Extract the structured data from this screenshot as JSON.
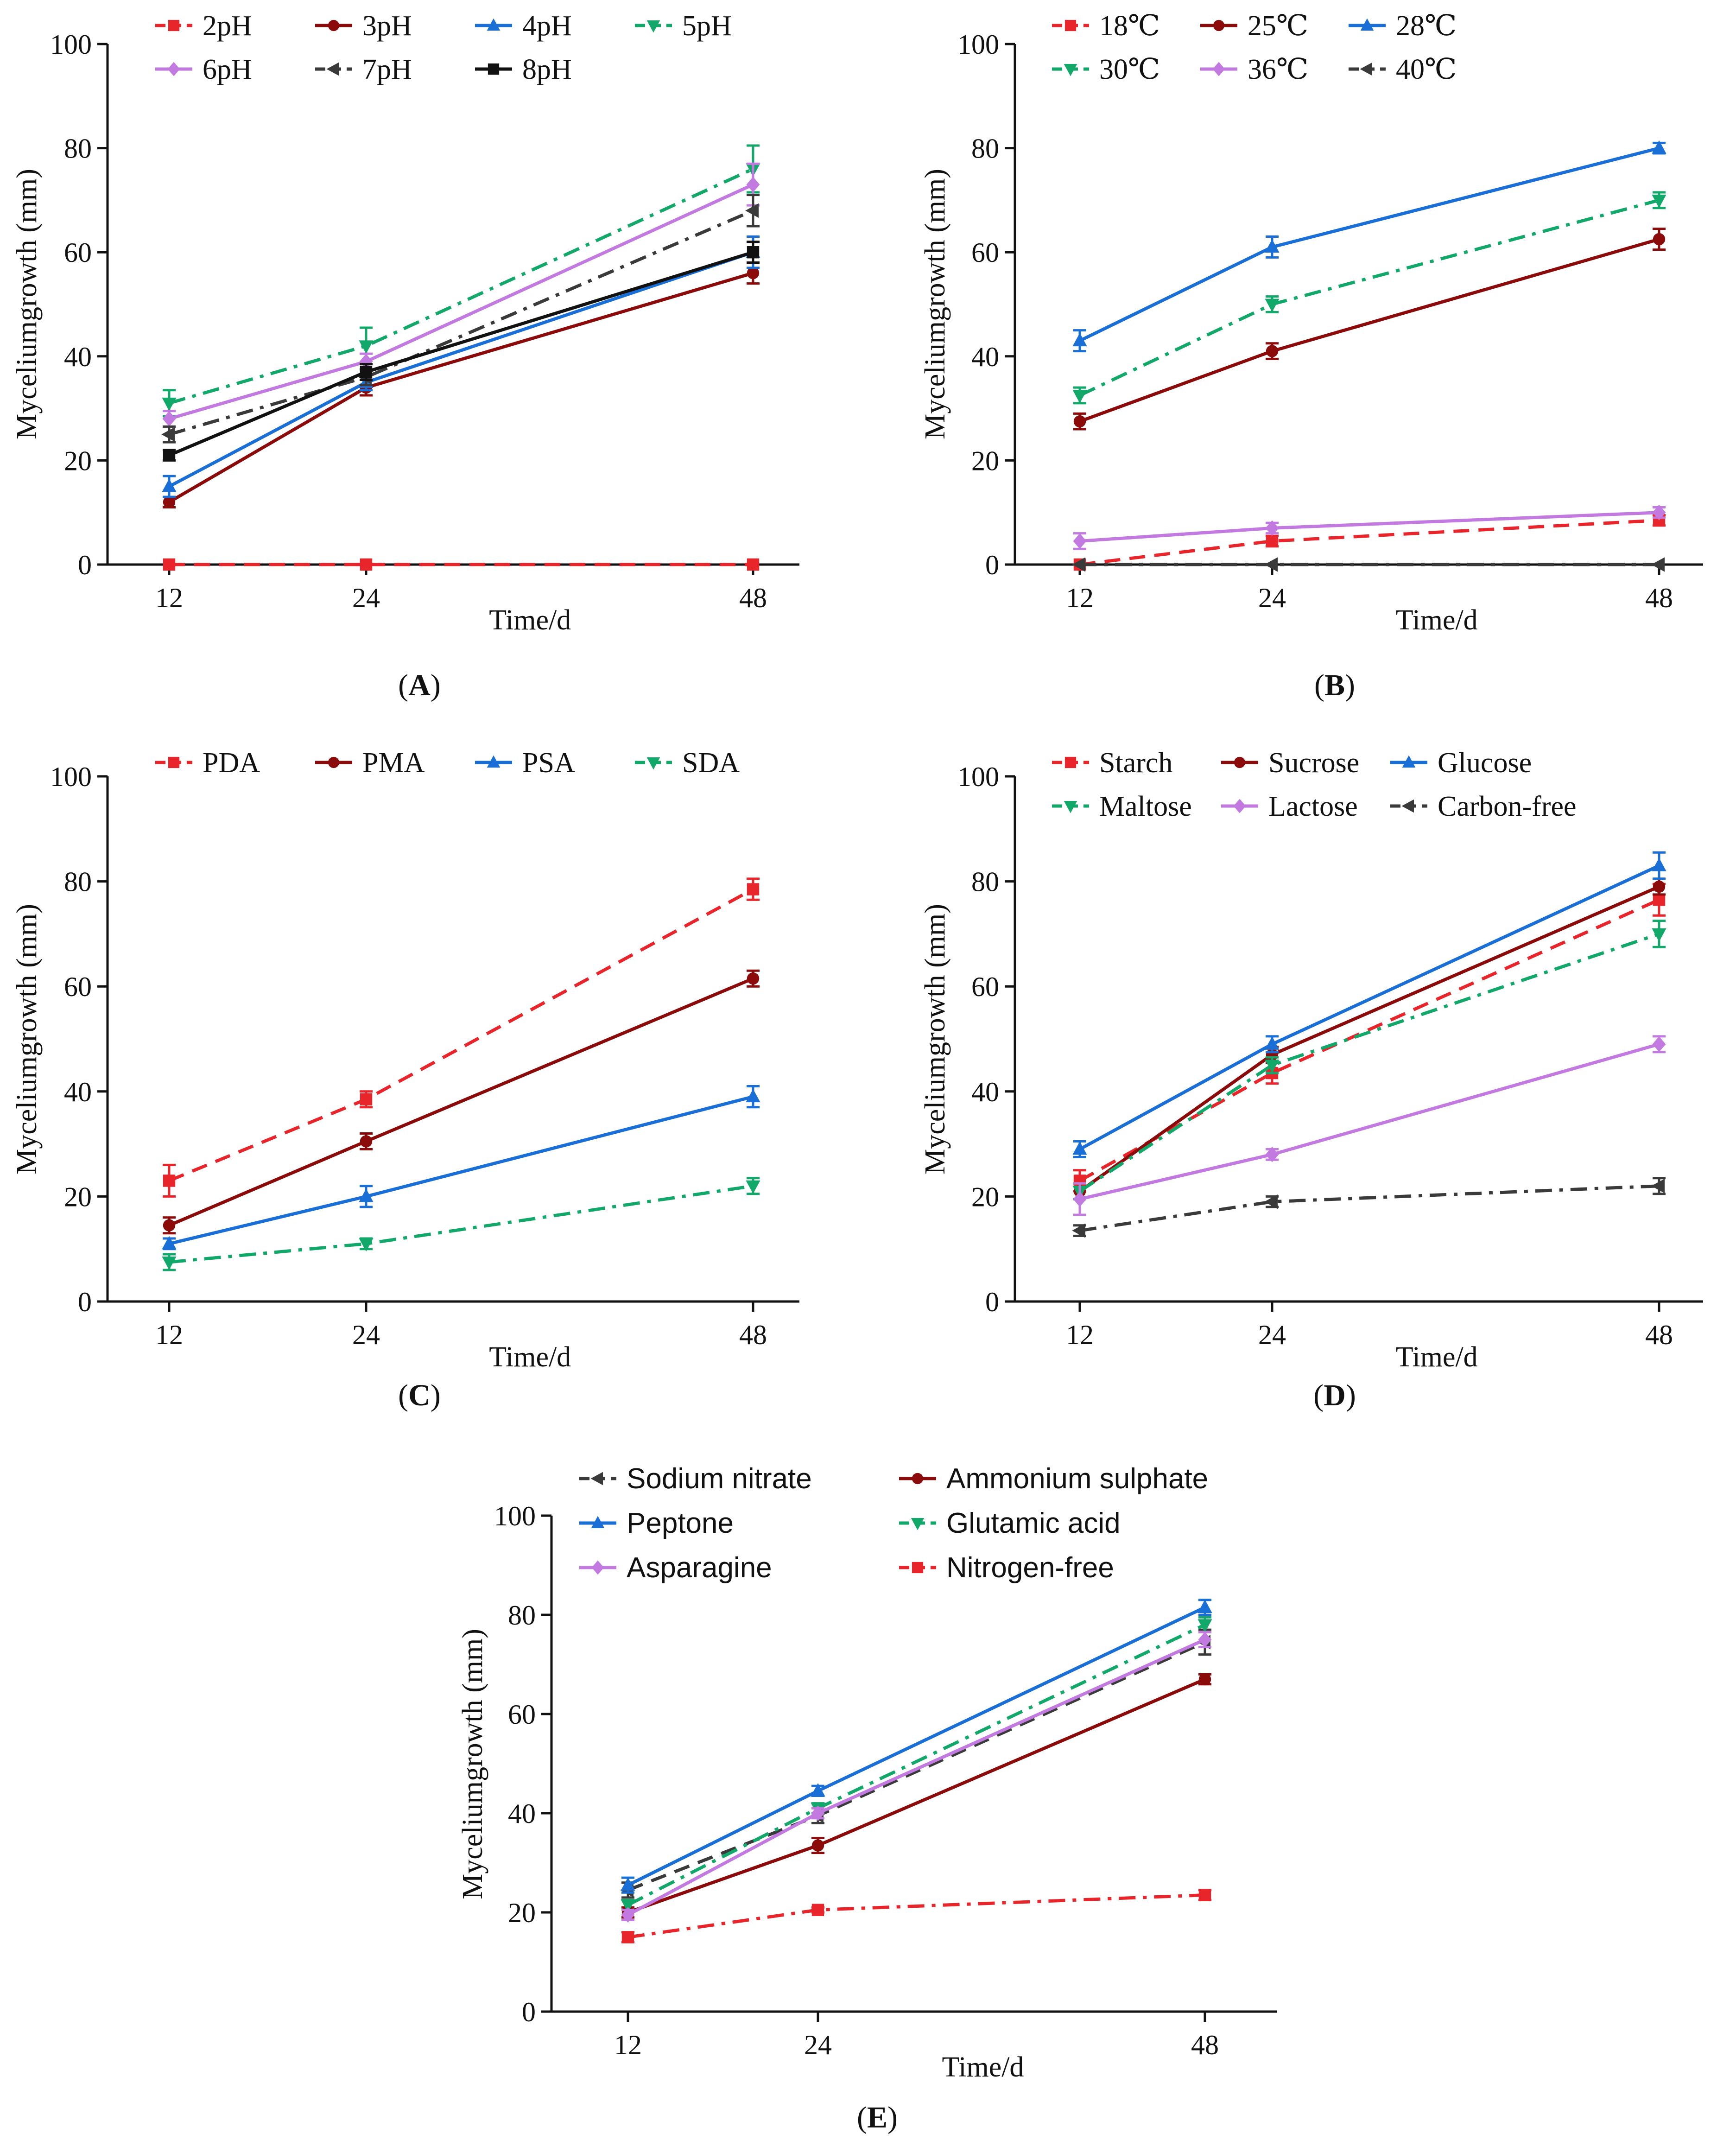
{
  "figure": {
    "panels": [
      {
        "id": "A",
        "label": "(A)"
      },
      {
        "id": "B",
        "label": "(B)"
      },
      {
        "id": "C",
        "label": "(C)"
      },
      {
        "id": "D",
        "label": "(D)"
      },
      {
        "id": "E",
        "label": "(E)"
      }
    ]
  },
  "chart_data": [
    {
      "panel": "A",
      "type": "line",
      "xlabel": "Time/d",
      "ylabel": "Myceliumgrowth (mm)",
      "x": [
        12,
        24,
        48
      ],
      "x_tick_labels": [
        "12",
        "24",
        "48"
      ],
      "ylim": [
        0,
        100
      ],
      "y_tick_labels": [
        "0",
        "20",
        "40",
        "60",
        "80",
        "100"
      ],
      "legend_columns": 4,
      "series": [
        {
          "name": "2pH",
          "values": [
            0,
            0,
            0
          ],
          "err": [
            0,
            0,
            0
          ],
          "color": "#e8252a",
          "dash": "dashed",
          "marker": "square"
        },
        {
          "name": "3pH",
          "values": [
            12,
            34,
            56
          ],
          "err": [
            1,
            1.5,
            2
          ],
          "color": "#8b0a0a",
          "dash": "solid",
          "marker": "circle"
        },
        {
          "name": "4pH",
          "values": [
            15,
            35,
            60
          ],
          "err": [
            2,
            1.5,
            3
          ],
          "color": "#1a6fd6",
          "dash": "solid",
          "marker": "triangle-up"
        },
        {
          "name": "5pH",
          "values": [
            31,
            42,
            76
          ],
          "err": [
            2.5,
            3.5,
            4.5
          ],
          "color": "#12a86a",
          "dash": "dashdot",
          "marker": "triangle-down"
        },
        {
          "name": "6pH",
          "values": [
            28,
            39,
            73
          ],
          "err": [
            1.5,
            1.5,
            4
          ],
          "color": "#c27ae0",
          "dash": "solid",
          "marker": "diamond"
        },
        {
          "name": "7pH",
          "values": [
            25,
            36,
            68
          ],
          "err": [
            1.5,
            1.5,
            3
          ],
          "color": "#3a3a3a",
          "dash": "dashdot",
          "marker": "triangle-left"
        },
        {
          "name": "8pH",
          "values": [
            21,
            37,
            60
          ],
          "err": [
            1,
            1.5,
            2
          ],
          "color": "#111111",
          "dash": "solid",
          "marker": "square"
        }
      ]
    },
    {
      "panel": "B",
      "type": "line",
      "xlabel": "Time/d",
      "ylabel": "Myceliumgrowth (mm)",
      "x": [
        12,
        24,
        48
      ],
      "x_tick_labels": [
        "12",
        "24",
        "48"
      ],
      "ylim": [
        0,
        100
      ],
      "y_tick_labels": [
        "0",
        "20",
        "40",
        "60",
        "80",
        "100"
      ],
      "legend_columns": 3,
      "series": [
        {
          "name": "18℃",
          "values": [
            0,
            4.5,
            8.5
          ],
          "err": [
            0,
            1,
            1
          ],
          "color": "#e8252a",
          "dash": "dashed",
          "marker": "square"
        },
        {
          "name": "25℃",
          "values": [
            27.5,
            41,
            62.5
          ],
          "err": [
            1.5,
            1.5,
            2
          ],
          "color": "#8b0a0a",
          "dash": "solid",
          "marker": "circle"
        },
        {
          "name": "28℃",
          "values": [
            43,
            61,
            80
          ],
          "err": [
            2,
            2,
            1
          ],
          "color": "#1a6fd6",
          "dash": "solid",
          "marker": "triangle-up"
        },
        {
          "name": "30℃",
          "values": [
            32.5,
            50,
            70
          ],
          "err": [
            1.5,
            1.5,
            1.5
          ],
          "color": "#12a86a",
          "dash": "dashdot",
          "marker": "triangle-down"
        },
        {
          "name": "36℃",
          "values": [
            4.5,
            7,
            10
          ],
          "err": [
            1.5,
            1,
            1
          ],
          "color": "#c27ae0",
          "dash": "solid",
          "marker": "diamond"
        },
        {
          "name": "40℃",
          "values": [
            0,
            0,
            0
          ],
          "err": [
            0,
            0,
            0
          ],
          "color": "#3a3a3a",
          "dash": "dashdot",
          "marker": "triangle-left"
        }
      ]
    },
    {
      "panel": "C",
      "type": "line",
      "xlabel": "Time/d",
      "ylabel": "Myceliumgrowth (mm)",
      "x": [
        12,
        24,
        48
      ],
      "x_tick_labels": [
        "12",
        "24",
        "48"
      ],
      "ylim": [
        0,
        100
      ],
      "y_tick_labels": [
        "0",
        "20",
        "40",
        "60",
        "80",
        "100"
      ],
      "legend_columns": 4,
      "series": [
        {
          "name": "PDA",
          "values": [
            23,
            38.5,
            78.5
          ],
          "err": [
            3,
            1.5,
            2
          ],
          "color": "#e8252a",
          "dash": "dashed",
          "marker": "square"
        },
        {
          "name": "PMA",
          "values": [
            14.5,
            30.5,
            61.5
          ],
          "err": [
            1.5,
            1.5,
            1.5
          ],
          "color": "#8b0a0a",
          "dash": "solid",
          "marker": "circle"
        },
        {
          "name": "PSA",
          "values": [
            11,
            20,
            39
          ],
          "err": [
            1,
            2,
            2
          ],
          "color": "#1a6fd6",
          "dash": "solid",
          "marker": "triangle-up"
        },
        {
          "name": "SDA",
          "values": [
            7.5,
            11,
            22
          ],
          "err": [
            1.5,
            1,
            1.5
          ],
          "color": "#12a86a",
          "dash": "dashdot",
          "marker": "triangle-down"
        }
      ]
    },
    {
      "panel": "D",
      "type": "line",
      "xlabel": "Time/d",
      "ylabel": "Myceliumgrowth (mm)",
      "x": [
        12,
        24,
        48
      ],
      "x_tick_labels": [
        "12",
        "24",
        "48"
      ],
      "ylim": [
        0,
        100
      ],
      "y_tick_labels": [
        "0",
        "20",
        "40",
        "60",
        "80",
        "100"
      ],
      "legend_columns": 3,
      "series": [
        {
          "name": "Starch",
          "values": [
            23,
            43.5,
            76.5
          ],
          "err": [
            2,
            2,
            3
          ],
          "color": "#e8252a",
          "dash": "dashed",
          "marker": "square"
        },
        {
          "name": "Sucrose",
          "values": [
            21,
            47,
            79
          ],
          "err": [
            1.5,
            1.5,
            1.5
          ],
          "color": "#8b0a0a",
          "dash": "solid",
          "marker": "circle"
        },
        {
          "name": "Glucose",
          "values": [
            29,
            49,
            83
          ],
          "err": [
            1.5,
            1.5,
            2.5
          ],
          "color": "#1a6fd6",
          "dash": "solid",
          "marker": "triangle-up"
        },
        {
          "name": "Maltose",
          "values": [
            21,
            45,
            70
          ],
          "err": [
            1.5,
            1.5,
            2.5
          ],
          "color": "#12a86a",
          "dash": "dashdot",
          "marker": "triangle-down"
        },
        {
          "name": "Lactose",
          "values": [
            19.5,
            28,
            49
          ],
          "err": [
            3,
            1,
            1.5
          ],
          "color": "#c27ae0",
          "dash": "solid",
          "marker": "diamond"
        },
        {
          "name": "Carbon-free",
          "values": [
            13.5,
            19,
            22
          ],
          "err": [
            1,
            1,
            1.5
          ],
          "color": "#3a3a3a",
          "dash": "dashdot",
          "marker": "triangle-left"
        }
      ]
    },
    {
      "panel": "E",
      "type": "line",
      "xlabel": "Time/d",
      "ylabel": "Myceliumgrowth (mm)",
      "x": [
        12,
        24,
        48
      ],
      "x_tick_labels": [
        "12",
        "24",
        "48"
      ],
      "ylim": [
        0,
        100
      ],
      "y_tick_labels": [
        "0",
        "20",
        "40",
        "60",
        "80",
        "100"
      ],
      "legend_columns": 2,
      "series": [
        {
          "name": "Sodium nitrate",
          "values": [
            24.5,
            39.5,
            74.5
          ],
          "err": [
            1.5,
            1.5,
            2.5
          ],
          "color": "#3a3a3a",
          "dash": "dashed",
          "marker": "triangle-left"
        },
        {
          "name": "Ammonium sulphate",
          "values": [
            20,
            33.5,
            67
          ],
          "err": [
            1,
            1.5,
            1
          ],
          "color": "#8b0a0a",
          "dash": "solid",
          "marker": "circle"
        },
        {
          "name": "Peptone",
          "values": [
            25.5,
            44.5,
            81.5
          ],
          "err": [
            1.5,
            1,
            1.5
          ],
          "color": "#1a6fd6",
          "dash": "solid",
          "marker": "triangle-up"
        },
        {
          "name": "Glutamic acid",
          "values": [
            21.5,
            41,
            78
          ],
          "err": [
            1,
            1,
            1.5
          ],
          "color": "#12a86a",
          "dash": "dashdot",
          "marker": "triangle-down"
        },
        {
          "name": "Asparagine",
          "values": [
            19.5,
            40,
            75
          ],
          "err": [
            1,
            1,
            1.5
          ],
          "color": "#c27ae0",
          "dash": "solid",
          "marker": "diamond"
        },
        {
          "name": "Nitrogen-free",
          "values": [
            15,
            20.5,
            23.5
          ],
          "err": [
            1,
            0.5,
            1
          ],
          "color": "#e8252a",
          "dash": "dashdot",
          "marker": "square"
        }
      ]
    }
  ]
}
